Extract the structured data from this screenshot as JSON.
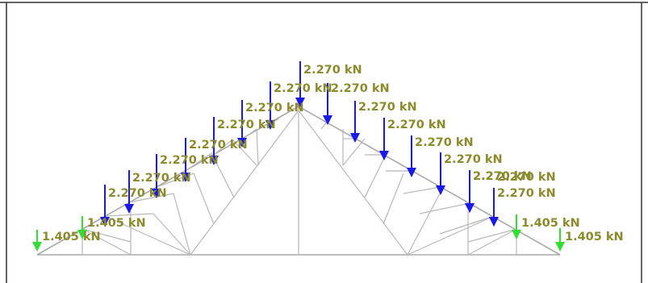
{
  "colors": {
    "frame_border": "#333333",
    "member": "#b8b8b8",
    "load_arrow_primary": "#1a1ae6",
    "load_arrow_support": "#33dd33",
    "label": "#8b8b2e"
  },
  "units": "kN",
  "loads": [
    {
      "id": "support-left-outer",
      "value": "1.405",
      "label": "1.405 kN",
      "arrow": "support-green-icon"
    },
    {
      "id": "support-left-inner",
      "value": "1.405",
      "label": "1.405 kN",
      "arrow": "support-green-icon"
    },
    {
      "id": "left-1",
      "value": "2.270",
      "label": "2.270 kN",
      "arrow": "load-down-arrow-icon"
    },
    {
      "id": "left-2",
      "value": "2.270",
      "label": "2.270 kN",
      "arrow": "load-down-arrow-icon"
    },
    {
      "id": "left-3",
      "value": "2.270",
      "label": "2.270 kN",
      "arrow": "load-down-arrow-icon"
    },
    {
      "id": "left-4",
      "value": "2.270",
      "label": "2.270 kN",
      "arrow": "load-down-arrow-icon"
    },
    {
      "id": "left-5",
      "value": "2.270",
      "label": "2.270 kN",
      "arrow": "load-down-arrow-icon"
    },
    {
      "id": "left-6",
      "value": "2.270",
      "label": "2.270 kN",
      "arrow": "load-down-arrow-icon"
    },
    {
      "id": "left-7",
      "value": "2.270",
      "label": "2.270 kN",
      "arrow": "load-down-arrow-icon"
    },
    {
      "id": "left-8",
      "value": "2.270",
      "label": "2.270 kN",
      "arrow": "load-down-arrow-icon"
    },
    {
      "id": "apex",
      "value": "2.270",
      "label": "2.270 kN",
      "arrow": "load-down-arrow-icon"
    },
    {
      "id": "right-1",
      "value": "2.270",
      "label": "2.270 kN",
      "arrow": "load-down-arrow-icon"
    },
    {
      "id": "right-2",
      "value": "2.270",
      "label": "2.270 kN",
      "arrow": "load-down-arrow-icon"
    },
    {
      "id": "right-3",
      "value": "2.270",
      "label": "2.270 kN",
      "arrow": "load-down-arrow-icon"
    },
    {
      "id": "right-4",
      "value": "2.270",
      "label": "2.270 kN",
      "arrow": "load-down-arrow-icon"
    },
    {
      "id": "right-5",
      "value": "2.270",
      "label": "2.270 kN",
      "arrow": "load-down-arrow-icon"
    },
    {
      "id": "right-6",
      "value": "2.270",
      "label": "2.270 kN",
      "arrow": "load-down-arrow-icon"
    },
    {
      "id": "right-7",
      "value": "2.270",
      "label": "2.270 kN",
      "arrow": "load-down-arrow-icon"
    },
    {
      "id": "right-8",
      "value": "2.270",
      "label": "2.270 kN",
      "arrow": "load-down-arrow-icon"
    },
    {
      "id": "support-right-inner",
      "value": "1.405",
      "label": "1.405 kN",
      "arrow": "support-green-icon"
    },
    {
      "id": "support-right-outer",
      "value": "1.405",
      "label": "1.405 kN",
      "arrow": "support-green-icon"
    }
  ]
}
